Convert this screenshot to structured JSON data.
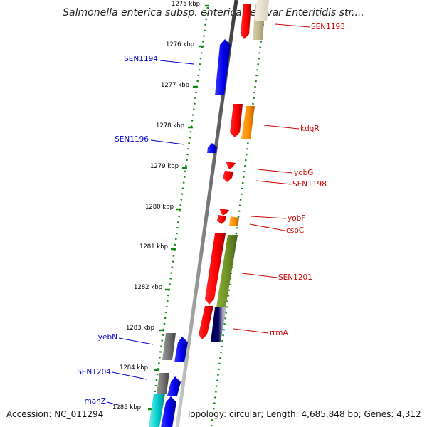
{
  "title": "Salmonella enterica subsp. enterica serovar Enteritidis str....",
  "accession": "Accession: NC_011294",
  "topology": "Topology: circular; Length: 4,685,848 bp; Genes: 4,312",
  "ruler_labels": [
    "1275 kbp",
    "1276 kbp",
    "1277 kbp",
    "1278 kbp",
    "1279 kbp",
    "1280 kbp",
    "1281 kbp",
    "1282 kbp",
    "1283 kbp",
    "1284 kbp",
    "1285 kbp"
  ],
  "left_genes": [
    "SEN1194",
    "SEN1196",
    "yebN",
    "SEN1204",
    "manZ"
  ],
  "right_genes": [
    "SEN1193",
    "kdgR",
    "yobG",
    "SEN1198",
    "yobF",
    "cspC",
    "SEN1201",
    "rrmA"
  ],
  "colors": {
    "blue_label": "#0000cc",
    "red_label": "#cc0000",
    "dots": "#118811"
  }
}
